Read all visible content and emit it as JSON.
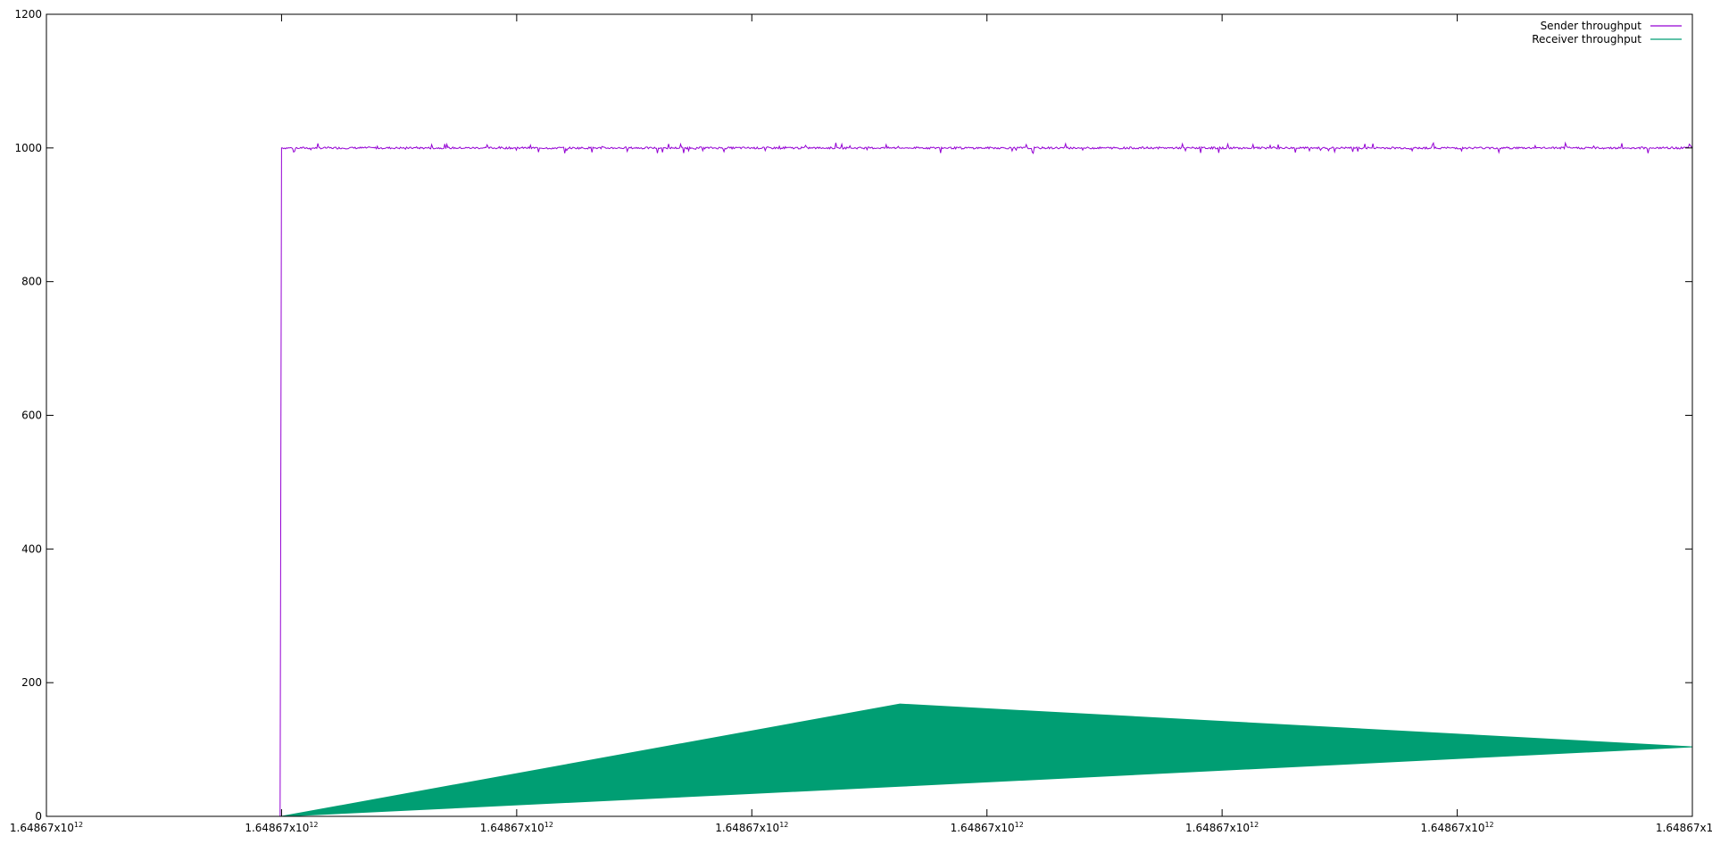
{
  "chart_data": {
    "type": "line",
    "title": "",
    "xlabel": "",
    "ylabel": "",
    "grid": false,
    "legend_position": "top-right",
    "ylim": [
      0,
      1200
    ],
    "y_ticks": [
      0,
      200,
      400,
      600,
      800,
      1000,
      1200
    ],
    "x_ticks": [
      {
        "mantissa": "1.64867",
        "exp": "12"
      },
      {
        "mantissa": "1.64867",
        "exp": "12"
      },
      {
        "mantissa": "1.64867",
        "exp": "12"
      },
      {
        "mantissa": "1.64867",
        "exp": "12"
      },
      {
        "mantissa": "1.64867",
        "exp": "12"
      },
      {
        "mantissa": "1.64867",
        "exp": "12"
      },
      {
        "mantissa": "1.64867",
        "exp": "12"
      },
      {
        "mantissa": "1.64867",
        "exp": "12"
      }
    ],
    "x_tick_suffix": "x10",
    "series": [
      {
        "name": "Sender throughput",
        "color": "#9400d3",
        "points": [
          [
            0.0,
            0
          ],
          [
            0.994,
            0
          ],
          [
            1.0,
            1000
          ],
          [
            1.4,
            1001
          ],
          [
            1.8,
            999
          ],
          [
            2.4,
            1000
          ],
          [
            3.0,
            1001
          ],
          [
            3.6,
            999
          ],
          [
            4.2,
            1000
          ],
          [
            4.8,
            1001
          ],
          [
            5.4,
            999
          ],
          [
            6.0,
            1000
          ],
          [
            6.6,
            1001
          ],
          [
            7.0,
            1000
          ]
        ]
      },
      {
        "name": "Receiver throughput",
        "color": "#009e73",
        "band_upper": [
          [
            1.0,
            0
          ],
          [
            3.63,
            168
          ],
          [
            7.0,
            104
          ]
        ],
        "band_lower": [
          [
            1.0,
            0
          ],
          [
            3.63,
            45
          ],
          [
            7.0,
            104
          ]
        ]
      }
    ]
  }
}
